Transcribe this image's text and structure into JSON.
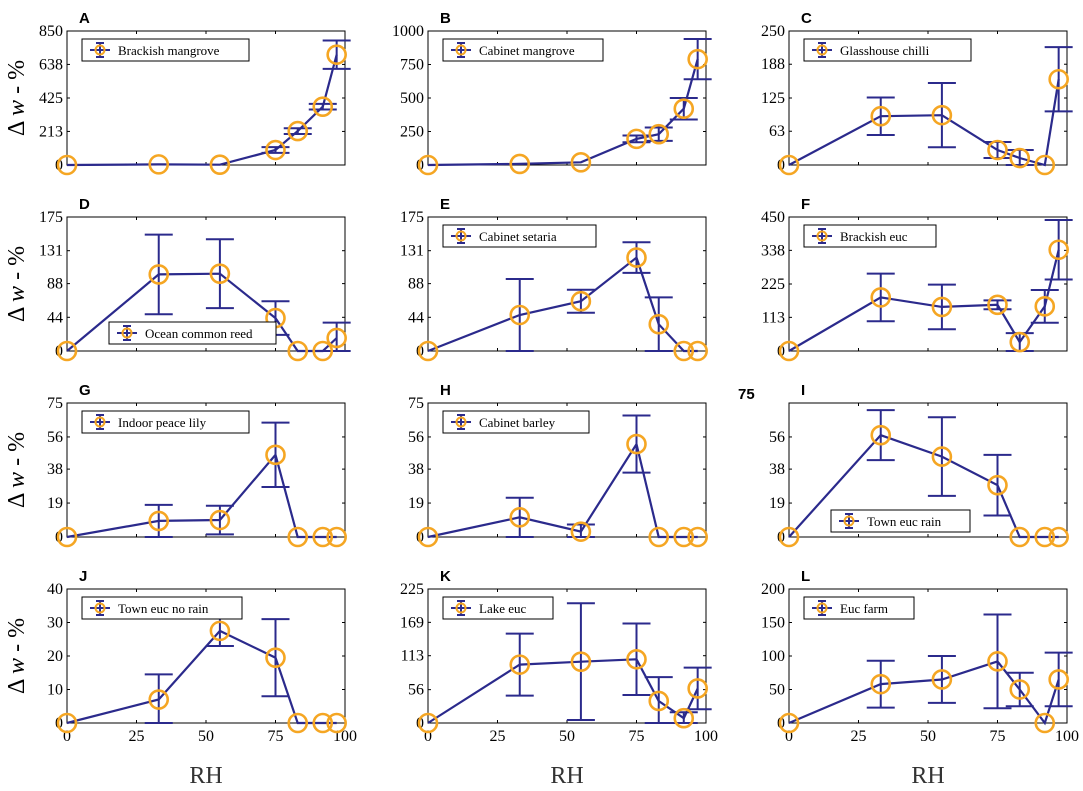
{
  "chart_data": {
    "type": "line",
    "figure": {
      "xlabel": "RH",
      "ylabel_symbol": "Δ",
      "ylabel_var": "w",
      "ylabel_rest": " - %",
      "extra_label": "75",
      "xlim": [
        0,
        100
      ],
      "xticks": [
        0,
        25,
        50,
        75,
        100
      ]
    },
    "colors": {
      "line": "#2B2A8C",
      "marker": "#F5A623",
      "axis": "#000000"
    },
    "panels": [
      {
        "label": "A",
        "legend": "Brackish mangrove",
        "legend_pos": "top-left",
        "ylim": [
          0,
          850
        ],
        "yticks": [
          "0",
          "213",
          "425",
          "638",
          "850"
        ],
        "x": [
          0,
          33,
          55,
          75,
          83,
          92,
          97
        ],
        "y": [
          0,
          4,
          2,
          95,
          215,
          370,
          700
        ],
        "err": [
          0,
          0,
          0,
          18,
          18,
          18,
          90
        ]
      },
      {
        "label": "B",
        "legend": "Cabinet mangrove",
        "legend_pos": "top-left",
        "ylim": [
          0,
          1000
        ],
        "yticks": [
          "0",
          "250",
          "500",
          "750",
          "1000"
        ],
        "x": [
          0,
          33,
          55,
          75,
          83,
          92,
          97
        ],
        "y": [
          0,
          8,
          20,
          195,
          230,
          420,
          790
        ],
        "err": [
          0,
          0,
          0,
          25,
          50,
          80,
          150
        ]
      },
      {
        "label": "C",
        "legend": "Glasshouse chilli",
        "legend_pos": "top-left",
        "ylim": [
          0,
          250
        ],
        "yticks": [
          "0",
          "63",
          "125",
          "188",
          "250"
        ],
        "x": [
          0,
          33,
          55,
          75,
          83,
          92,
          97
        ],
        "y": [
          0,
          91,
          93,
          28,
          13,
          0,
          160
        ],
        "err": [
          0,
          35,
          60,
          15,
          15,
          0,
          60
        ]
      },
      {
        "label": "D",
        "legend": "Ocean common reed",
        "legend_pos": "bottom-mid",
        "ylim": [
          0,
          175
        ],
        "yticks": [
          "0",
          "44",
          "88",
          "131",
          "175"
        ],
        "x": [
          0,
          33,
          55,
          75,
          83,
          92,
          97
        ],
        "y": [
          0,
          100,
          101,
          43,
          0,
          0,
          17
        ],
        "err": [
          0,
          52,
          45,
          22,
          0,
          0,
          20
        ]
      },
      {
        "label": "E",
        "legend": "Cabinet setaria",
        "legend_pos": "top-left",
        "ylim": [
          0,
          175
        ],
        "yticks": [
          "0",
          "44",
          "88",
          "131",
          "175"
        ],
        "x": [
          0,
          33,
          55,
          75,
          83,
          92,
          97
        ],
        "y": [
          0,
          47,
          65,
          122,
          35,
          0,
          0
        ],
        "err": [
          0,
          47,
          15,
          20,
          35,
          0,
          0
        ]
      },
      {
        "label": "F",
        "legend": "Brackish euc",
        "legend_pos": "top-left",
        "ylim": [
          0,
          450
        ],
        "yticks": [
          "0",
          "113",
          "225",
          "338",
          "450"
        ],
        "x": [
          0,
          33,
          55,
          75,
          83,
          92,
          97
        ],
        "y": [
          0,
          180,
          148,
          155,
          30,
          150,
          340
        ],
        "err": [
          0,
          80,
          75,
          15,
          30,
          55,
          100
        ]
      },
      {
        "label": "G",
        "legend": "Indoor peace lily",
        "legend_pos": "top-left",
        "ylim": [
          0,
          75
        ],
        "yticks": [
          "0",
          "19",
          "38",
          "56",
          "75"
        ],
        "x": [
          0,
          33,
          55,
          75,
          83,
          92,
          97
        ],
        "y": [
          0,
          9,
          9.5,
          46,
          0,
          0,
          0
        ],
        "err": [
          0,
          9,
          8,
          18,
          0,
          0,
          0
        ]
      },
      {
        "label": "H",
        "legend": "Cabinet barley",
        "legend_pos": "top-left",
        "ylim": [
          0,
          75
        ],
        "yticks": [
          "0",
          "19",
          "38",
          "56",
          "75"
        ],
        "x": [
          0,
          33,
          55,
          75,
          83,
          92,
          97
        ],
        "y": [
          0,
          11,
          3,
          52,
          0,
          0,
          0
        ],
        "err": [
          0,
          11,
          4,
          16,
          0,
          0,
          0
        ]
      },
      {
        "label": "I",
        "legend": "Town euc rain",
        "legend_pos": "bottom-right",
        "ylim": [
          0,
          75
        ],
        "yticks": [
          "0",
          "19",
          "38",
          "56"
        ],
        "x": [
          0,
          33,
          55,
          75,
          83,
          92,
          97
        ],
        "y": [
          0,
          57,
          45,
          29,
          0,
          0,
          0
        ],
        "err": [
          0,
          14,
          22,
          17,
          0,
          0,
          0
        ]
      },
      {
        "label": "J",
        "legend": "Town euc no rain",
        "legend_pos": "top-left",
        "ylim": [
          0,
          40
        ],
        "yticks": [
          "0",
          "10",
          "20",
          "30",
          "40"
        ],
        "x": [
          0,
          33,
          55,
          75,
          83,
          92,
          97
        ],
        "y": [
          0,
          7,
          27.5,
          19.5,
          0,
          0,
          0
        ],
        "err": [
          0,
          7.5,
          4.5,
          11.5,
          0,
          0,
          0
        ]
      },
      {
        "label": "K",
        "legend": "Lake euc",
        "legend_pos": "top-left",
        "ylim": [
          0,
          225
        ],
        "yticks": [
          "0",
          "56",
          "113",
          "169",
          "225"
        ],
        "x": [
          0,
          33,
          55,
          75,
          83,
          92,
          97
        ],
        "y": [
          0,
          98,
          103,
          107,
          37,
          8,
          58
        ],
        "err": [
          0,
          52,
          98,
          60,
          40,
          10,
          35
        ]
      },
      {
        "label": "L",
        "legend": "Euc farm",
        "legend_pos": "top-left",
        "ylim": [
          0,
          200
        ],
        "yticks": [
          "0",
          "50",
          "100",
          "150",
          "200"
        ],
        "x": [
          0,
          33,
          55,
          75,
          83,
          92,
          97
        ],
        "y": [
          0,
          58,
          65,
          92,
          50,
          0,
          65
        ],
        "err": [
          0,
          35,
          35,
          70,
          25,
          0,
          40
        ]
      }
    ]
  }
}
